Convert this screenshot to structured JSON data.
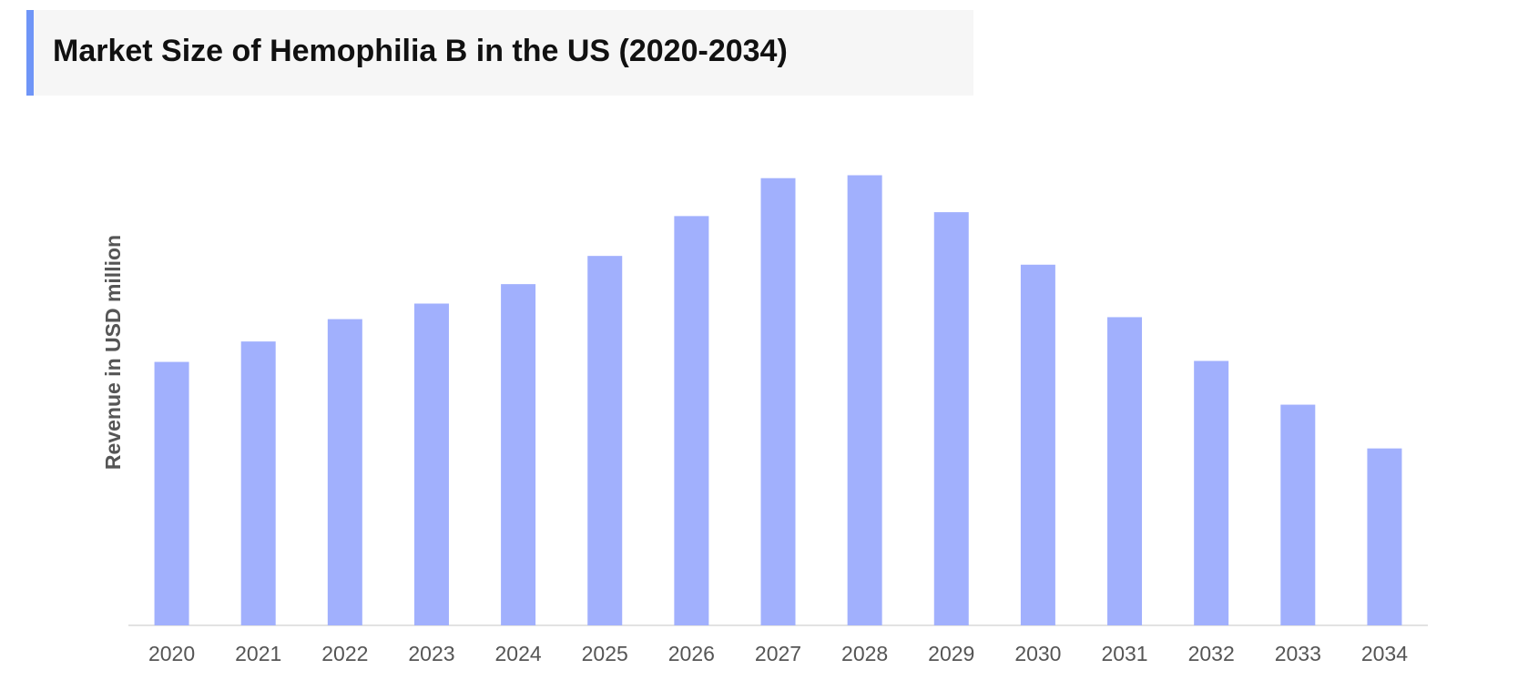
{
  "chart_data": {
    "type": "bar",
    "title": "Market Size of Hemophilia B in the US (2020-2034)",
    "y_label": "Revenue in USD million",
    "categories": [
      "2020",
      "2021",
      "2022",
      "2023",
      "2024",
      "2025",
      "2026",
      "2027",
      "2028",
      "2029",
      "2030",
      "2031",
      "2032",
      "2033",
      "2034"
    ],
    "values": [
      271,
      292,
      315,
      331,
      351,
      380,
      421,
      460,
      463,
      425,
      371,
      317,
      272,
      227,
      182
    ],
    "color": "#a1b0fd",
    "ylim": [
      0,
      500
    ],
    "grid": false
  }
}
